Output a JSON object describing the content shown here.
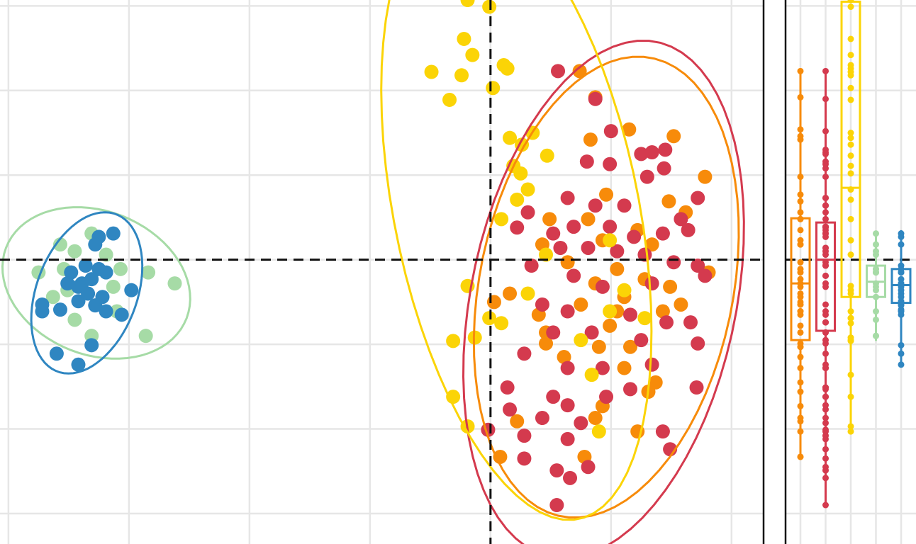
{
  "chart_data": [
    {
      "type": "scatter",
      "xlim": [
        -4.07,
        2.26
      ],
      "ylim": [
        -3.36,
        3.07
      ],
      "xticks": [
        -4,
        -3,
        -2,
        -1,
        0,
        1,
        2
      ],
      "yticks": [
        -3,
        -2,
        -1,
        0,
        1,
        2,
        3
      ],
      "grid": true,
      "hline": 0,
      "vline": 0,
      "ellipse_level": 0.95,
      "series": [
        {
          "color": "#f78b0a",
          "x": [
            0.74,
            0.87,
            1.15,
            0.83,
            1.52,
            1.78,
            0.96,
            1.48,
            1.62,
            0.49,
            0.81,
            1.22,
            0.43,
            0.93,
            1.34,
            1.81,
            0.64,
            1.05,
            1.49,
            0.16,
            0.87,
            1.11,
            1.28,
            0.03,
            0.4,
            0.75,
            0.99,
            1.43,
            0.46,
            0.9,
            1.16,
            1.58,
            0.61,
            1.11,
            0.46,
            1.37,
            1.31,
            0.93,
            0.87,
            0.08,
            0.78,
            0.22,
            1.22,
            1.05
          ],
          "y": [
            2.23,
            1.92,
            1.54,
            1.42,
            1.46,
            0.98,
            0.77,
            0.69,
            0.56,
            0.48,
            0.48,
            0.35,
            0.18,
            0.23,
            0.18,
            -0.15,
            -0.03,
            -0.11,
            -0.32,
            -0.4,
            -0.28,
            -0.44,
            -0.23,
            -0.5,
            -0.65,
            -0.53,
            -0.78,
            -0.61,
            -0.86,
            -1.03,
            -1.03,
            -0.53,
            -1.15,
            -1.28,
            -0.99,
            -1.45,
            -1.56,
            -1.73,
            -1.87,
            -2.33,
            -2.33,
            -1.91,
            -2.03,
            -0.61
          ]
        },
        {
          "color": "#d43a4e",
          "x": [
            0.56,
            0.87,
            1.0,
            0.8,
            0.99,
            1.25,
            1.34,
            1.45,
            1.44,
            1.3,
            0.64,
            0.87,
            1.11,
            1.58,
            1.72,
            0.31,
            0.22,
            0.52,
            0.69,
            0.99,
            1.19,
            1.43,
            1.64,
            0.58,
            0.81,
            1.05,
            1.28,
            1.52,
            1.72,
            0.34,
            0.69,
            0.93,
            1.34,
            1.78,
            0.43,
            0.64,
            1.16,
            1.46,
            1.66,
            0.52,
            0.84,
            1.25,
            1.72,
            0.28,
            0.64,
            0.93,
            1.34,
            0.14,
            0.52,
            0.64,
            0.96,
            1.16,
            1.71,
            0.16,
            0.43,
            0.75,
            -0.02,
            0.28,
            0.64,
            1.43,
            1.49,
            0.28,
            0.55,
            0.66,
            0.81,
            0.55
          ],
          "y": [
            2.23,
            1.9,
            1.52,
            1.16,
            1.13,
            1.25,
            1.27,
            1.3,
            1.08,
            0.98,
            0.73,
            0.64,
            0.64,
            0.48,
            0.73,
            0.56,
            0.38,
            0.31,
            0.39,
            0.39,
            0.27,
            0.31,
            0.35,
            0.14,
            0.14,
            0.1,
            0.06,
            -0.03,
            -0.07,
            -0.07,
            -0.19,
            -0.32,
            -0.28,
            -0.19,
            -0.53,
            -0.61,
            -0.65,
            -0.74,
            -0.74,
            -0.86,
            -0.86,
            -0.95,
            -0.99,
            -1.11,
            -1.28,
            -1.28,
            -1.24,
            -1.51,
            -1.62,
            -1.72,
            -1.62,
            -1.53,
            -1.51,
            -1.77,
            -1.87,
            -1.93,
            -2.01,
            -2.08,
            -2.12,
            -2.03,
            -2.24,
            -2.35,
            -2.49,
            -2.58,
            -2.45,
            -2.9
          ]
        },
        {
          "color": "#fbd406",
          "x": [
            -0.19,
            -0.01,
            -0.22,
            -0.15,
            -0.49,
            -0.24,
            0.11,
            0.14,
            0.02,
            -0.34,
            0.16,
            0.35,
            0.26,
            0.47,
            0.19,
            0.25,
            0.31,
            0.22,
            0.09,
            -0.19,
            -0.01,
            0.09,
            -0.13,
            -0.31,
            -0.31,
            -0.19,
            0.9,
            0.75,
            0.84,
            0.99,
            1.11,
            1.28,
            0.99,
            0.31,
            0.46
          ],
          "y": [
            3.07,
            2.99,
            2.61,
            2.42,
            2.22,
            2.18,
            2.3,
            2.26,
            2.03,
            1.89,
            1.44,
            1.5,
            1.36,
            1.23,
            1.11,
            1.02,
            0.83,
            0.71,
            0.48,
            -0.31,
            -0.69,
            -0.75,
            -0.92,
            -0.96,
            -1.62,
            -1.97,
            -2.03,
            -0.95,
            -1.36,
            -0.61,
            -0.36,
            -0.69,
            0.23,
            -0.4,
            0.06
          ]
        },
        {
          "color": "#a6dba6",
          "x": [
            -3.75,
            -3.57,
            -3.45,
            -3.31,
            -3.07,
            -2.84,
            -2.62,
            -2.86,
            -3.31,
            -3.45,
            -3.63,
            -3.51,
            -3.13,
            -3.1,
            -3.54,
            -3.19
          ],
          "y": [
            -0.15,
            0.18,
            0.1,
            0.31,
            -0.11,
            -0.15,
            -0.28,
            -0.9,
            -0.9,
            -0.71,
            -0.44,
            -0.36,
            -0.32,
            -0.61,
            -0.11,
            0.06
          ]
        },
        {
          "color": "#2f86c1",
          "x": [
            -3.6,
            -3.42,
            -3.31,
            -3.72,
            -3.57,
            -3.42,
            -3.28,
            -3.19,
            -3.06,
            -2.98,
            -3.48,
            -3.36,
            -3.25,
            -3.31,
            -3.39,
            -3.19,
            -3.25,
            -3.13,
            -3.28,
            -3.42,
            -3.34,
            -3.22,
            -3.51,
            -3.72
          ],
          "y": [
            -1.11,
            -1.24,
            -1.01,
            -0.61,
            -0.59,
            -0.49,
            -0.54,
            -0.61,
            -0.65,
            -0.36,
            -0.15,
            -0.07,
            -0.11,
            -0.23,
            -0.28,
            -0.15,
            0.27,
            0.31,
            0.18,
            -0.32,
            -0.4,
            -0.44,
            -0.28,
            -0.53
          ]
        }
      ]
    },
    {
      "type": "box",
      "ylim": [
        -3.36,
        3.07
      ],
      "yticks": [
        -3,
        -2,
        -1,
        0,
        1,
        2,
        3
      ],
      "grid": true,
      "hline": 0,
      "series": [
        {
          "color": "#f78b0a",
          "min": -2.31,
          "q1": -0.95,
          "median": -0.28,
          "q3": 0.49,
          "max": 2.26
        },
        {
          "color": "#d43a4e",
          "min": -2.89,
          "q1": -0.84,
          "median": 0.0,
          "q3": 0.44,
          "max": 2.26
        },
        {
          "color": "#fbd406",
          "min": -1.99,
          "q1": -0.44,
          "median": 0.85,
          "q3": 3.05,
          "max": 3.05
        },
        {
          "color": "#a6dba6",
          "min": -0.96,
          "q1": -0.44,
          "median": -0.26,
          "q3": -0.07,
          "max": 0.33
        },
        {
          "color": "#2f86c1",
          "min": -1.22,
          "q1": -0.51,
          "median": -0.3,
          "q3": -0.11,
          "max": 0.35
        }
      ]
    }
  ]
}
